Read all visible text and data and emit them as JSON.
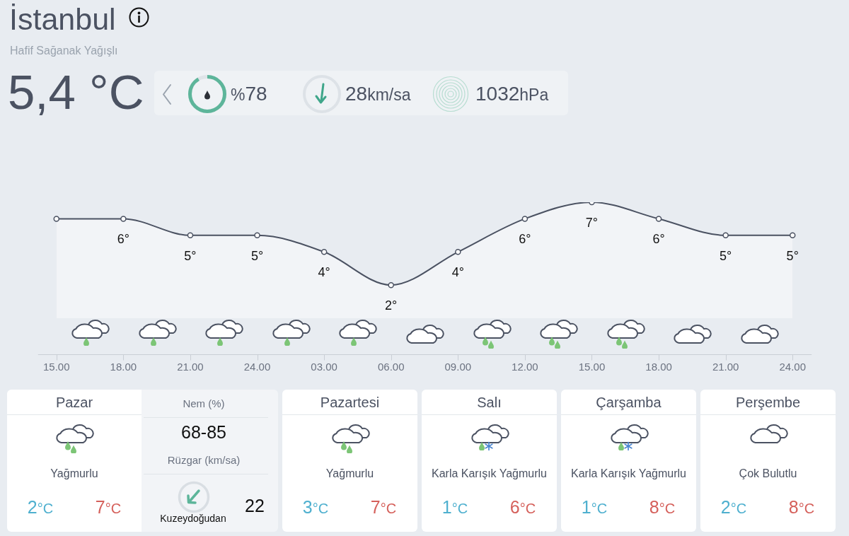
{
  "chart_data": [
    {
      "type": "other",
      "title": "İstanbul",
      "subtitle": "Hafif Sağanak Yağışlı",
      "annotations": [
        "5,4 °C",
        "%78",
        "28km/sa",
        "1032hPa"
      ]
    },
    {
      "type": "area",
      "categories": [
        "15.00",
        "18.00",
        "21.00",
        "24.00",
        "03.00",
        "06.00",
        "09.00",
        "12.00",
        "15.00",
        "18.00",
        "21.00",
        "24.00"
      ],
      "values": [
        6,
        6,
        5,
        5,
        4,
        2,
        4,
        6,
        7,
        6,
        5,
        5
      ],
      "value_labels": [
        null,
        "6°",
        "5°",
        "5°",
        "4°",
        "2°",
        "4°",
        "6°",
        "7°",
        "6°",
        "5°",
        "5°"
      ],
      "color": "#4b5262",
      "marker": "circle",
      "tick_labels": "x"
    },
    {
      "type": "other",
      "title": "Pazar",
      "annotations": [
        "Yağmurlu",
        "2°C",
        "7°C"
      ]
    },
    {
      "type": "other",
      "annotations": [
        "Nem (%)",
        "68-85",
        "Rüzgar (km/sa)",
        "Kuzeydoğudan",
        "22"
      ]
    },
    {
      "type": "other",
      "title": "Pazartesi",
      "annotations": [
        "Yağmurlu",
        "3°C",
        "7°C"
      ]
    },
    {
      "type": "other",
      "title": "Salı",
      "annotations": [
        "Karla Karışık Yağmurlu",
        "1°C",
        "6°C"
      ]
    },
    {
      "type": "other",
      "title": "Çarşamba",
      "annotations": [
        "Karla Karışık Yağmurlu",
        "1°C",
        "8°C"
      ]
    },
    {
      "type": "other",
      "title": "Perşembe",
      "annotations": [
        "Çok Bulutlu",
        "2°C",
        "8°C"
      ]
    }
  ]
}
